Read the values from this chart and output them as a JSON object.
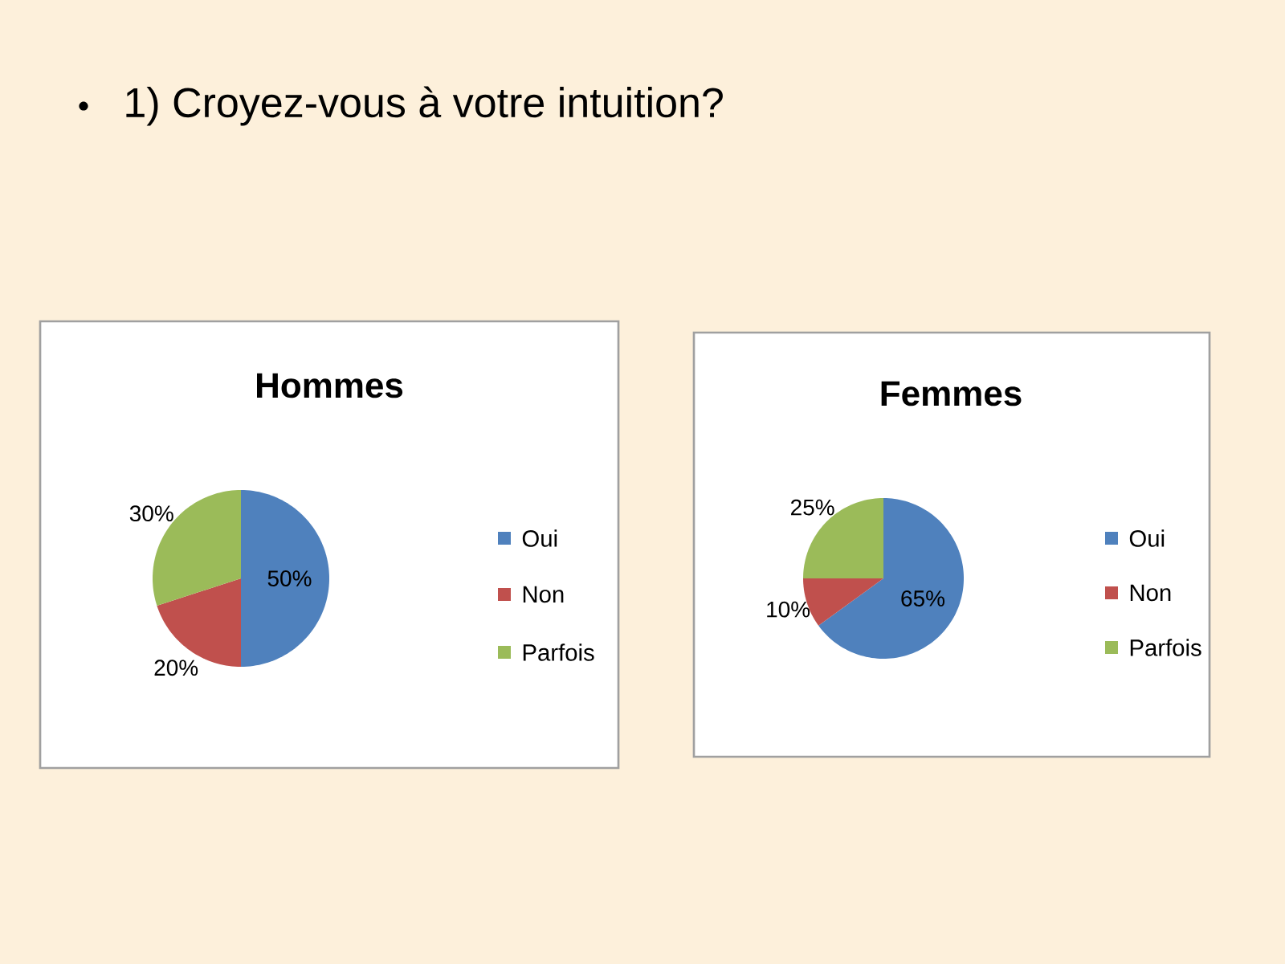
{
  "chart_data": [
    {
      "type": "other",
      "title": "1) Croyez-vous à votre intuition?"
    },
    {
      "type": "pie",
      "title": "Hommes",
      "categories": [
        "Oui",
        "Non",
        "Parfois"
      ],
      "values": [
        50,
        20,
        30
      ],
      "colors": [
        "#4f81bd",
        "#c0504d",
        "#9bbb59"
      ],
      "value_labels": [
        "50%",
        "20%",
        "30%"
      ],
      "legend": "right"
    },
    {
      "type": "pie",
      "title": "Femmes",
      "categories": [
        "Oui",
        "Non",
        "Parfois"
      ],
      "values": [
        65,
        10,
        25
      ],
      "colors": [
        "#4f81bd",
        "#c0504d",
        "#9bbb59"
      ],
      "value_labels": [
        "65%",
        "10%",
        "25%"
      ],
      "legend": "right"
    }
  ]
}
